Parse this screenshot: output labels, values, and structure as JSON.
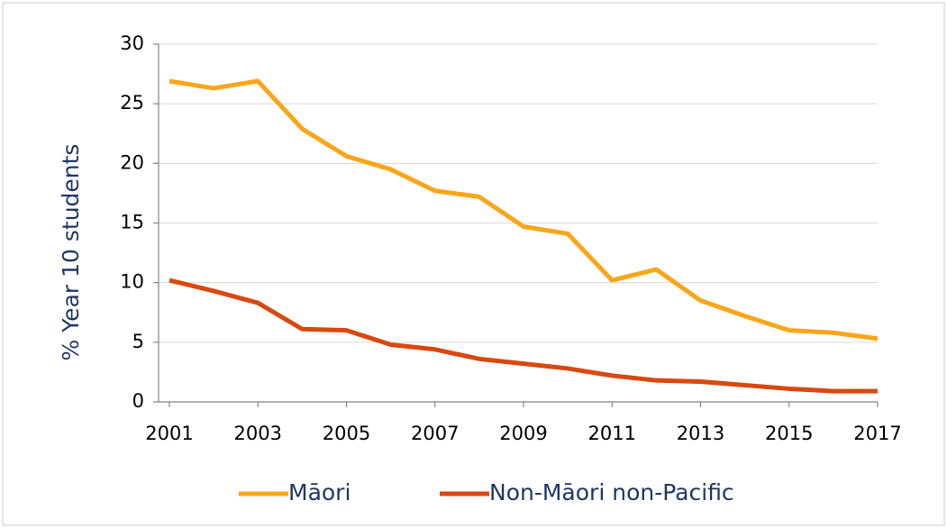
{
  "chart_data": {
    "type": "line",
    "y_label": "% Year 10 students",
    "x": [
      2001,
      2002,
      2003,
      2004,
      2005,
      2006,
      2007,
      2008,
      2009,
      2010,
      2011,
      2012,
      2013,
      2014,
      2015,
      2016,
      2017
    ],
    "series": [
      {
        "name": "Māori",
        "color": "#faa619",
        "values": [
          26.9,
          26.3,
          26.9,
          22.9,
          20.6,
          19.5,
          17.7,
          17.2,
          14.7,
          14.1,
          10.2,
          11.1,
          8.5,
          7.2,
          6.0,
          5.8,
          5.3
        ]
      },
      {
        "name": "Non-Māori non-Pacific",
        "color": "#d9480f",
        "values": [
          10.2,
          9.3,
          8.3,
          6.1,
          6.0,
          4.8,
          4.4,
          3.6,
          3.2,
          2.8,
          2.2,
          1.8,
          1.7,
          1.4,
          1.1,
          0.9,
          0.9
        ]
      }
    ],
    "xlim": [
      2001,
      2017
    ],
    "xticks": [
      2001,
      2003,
      2005,
      2007,
      2009,
      2011,
      2013,
      2015,
      2017
    ],
    "ylim": [
      0,
      30
    ],
    "yticks": [
      0,
      5,
      10,
      15,
      20,
      25,
      30
    ],
    "grid": true,
    "legend": "bottom"
  }
}
